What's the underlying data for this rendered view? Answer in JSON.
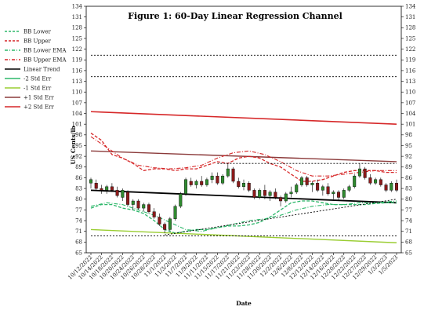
{
  "chart_data": {
    "type": "line",
    "title": "Figure 1:  60-Day Linear Regression Channel",
    "xlabel": "Date",
    "ylabel": "US Cents/lb",
    "ylim": [
      65,
      134
    ],
    "yticks": [
      65,
      68,
      71,
      74,
      77,
      80,
      83,
      86,
      89,
      92,
      95,
      98,
      101,
      104,
      107,
      110,
      113,
      116,
      119,
      122,
      125,
      128,
      131,
      134
    ],
    "categories": [
      "10/12/2022",
      "10/14/2022",
      "10/18/2022",
      "10/20/2022",
      "10/24/2022",
      "10/26/2022",
      "10/28/2022",
      "11/1/2022",
      "11/3/2022",
      "11/7/2022",
      "11/9/2022",
      "11/11/2022",
      "11/15/2022",
      "11/17/2022",
      "11/21/2022",
      "11/23/2022",
      "11/28/2022",
      "11/30/2022",
      "12/2/2022",
      "12/6/2022",
      "12/8/2022",
      "12/12/2022",
      "12/14/2022",
      "12/16/2022",
      "12/20/2022",
      "12/22/2022",
      "12/27/2022",
      "12/29/2022",
      "1/3/2023",
      "1/5/2023"
    ],
    "legend_position": "left",
    "grid": false,
    "legend": [
      {
        "name": "BB Lower",
        "color": "#2eb86b",
        "dash": "dashed"
      },
      {
        "name": "BB Upper",
        "color": "#d62728",
        "dash": "dashed"
      },
      {
        "name": "BB Lower EMA",
        "color": "#2eb86b",
        "dash": "dashdot"
      },
      {
        "name": "BB Upper EMA",
        "color": "#d62728",
        "dash": "dashdot"
      },
      {
        "name": "Linear Trend",
        "color": "#000000",
        "dash": "solid"
      },
      {
        "name": "-2 Std Err",
        "color": "#2eb86b",
        "dash": "solid"
      },
      {
        "name": "-1 Std Err",
        "color": "#9acd32",
        "dash": "solid"
      },
      {
        "name": "+1 Std Err",
        "color": "#8b3a3a",
        "dash": "solid"
      },
      {
        "name": "+2 Std Err",
        "color": "#d62728",
        "dash": "solid"
      }
    ],
    "series": [
      {
        "name": "Linear Trend",
        "type": "straight",
        "color": "#000000",
        "width": 1.8,
        "dash": "",
        "from": [
          0,
          82.5
        ],
        "to": [
          58,
          79.0
        ]
      },
      {
        "name": "+1 Std Err",
        "type": "straight",
        "color": "#8b3a3a",
        "width": 1.4,
        "dash": "",
        "from": [
          0,
          93.5
        ],
        "to": [
          58,
          90.5
        ]
      },
      {
        "name": "+2 Std Err",
        "type": "straight",
        "color": "#d62728",
        "width": 1.6,
        "dash": "",
        "from": [
          0,
          104.5
        ],
        "to": [
          58,
          101.0
        ]
      },
      {
        "name": "-1 Std Err",
        "type": "straight",
        "color": "#9acd32",
        "width": 1.4,
        "dash": "",
        "from": [
          0,
          71.5
        ],
        "to": [
          58,
          67.8
        ]
      },
      {
        "name": "BB Upper",
        "type": "line",
        "color": "#d62728",
        "width": 1.3,
        "dash": "4,2",
        "x": [
          0,
          2,
          4,
          6,
          8,
          10,
          12,
          14,
          16,
          18,
          20,
          22,
          24,
          26,
          28,
          30,
          32,
          34,
          36,
          38,
          40,
          42,
          44,
          46,
          48,
          50,
          52,
          54,
          56,
          58
        ],
        "y": [
          98.5,
          96.5,
          92.5,
          91.5,
          90.0,
          88.0,
          88.5,
          88.5,
          88.0,
          88.5,
          88.5,
          89.5,
          90.5,
          90.0,
          91.5,
          92.0,
          91.5,
          90.0,
          89.0,
          87.0,
          85.0,
          85.0,
          85.5,
          86.5,
          87.5,
          88.0,
          88.0,
          88.0,
          87.5,
          87.5
        ]
      },
      {
        "name": "BB Upper EMA",
        "type": "line",
        "color": "#d62728",
        "width": 1.1,
        "dash": "5,2,1,2",
        "x": [
          0,
          3,
          6,
          9,
          12,
          15,
          18,
          21,
          24,
          27,
          30,
          33,
          36,
          39,
          42,
          45,
          48,
          51,
          54,
          58
        ],
        "y": [
          97.5,
          94.5,
          91.5,
          89.5,
          88.8,
          88.5,
          88.8,
          89.5,
          91.5,
          93.0,
          93.5,
          92.5,
          90.5,
          88.0,
          86.5,
          86.5,
          87.0,
          87.5,
          88.0,
          88.0
        ]
      },
      {
        "name": "BB Lower",
        "type": "line",
        "color": "#2eb86b",
        "width": 1.3,
        "dash": "4,2",
        "x": [
          0,
          2,
          4,
          6,
          8,
          10,
          12,
          14,
          16,
          18,
          20,
          22,
          24,
          26,
          28,
          30,
          32,
          34,
          36,
          38,
          40,
          42,
          44,
          46,
          48,
          50,
          52,
          54,
          56,
          58
        ],
        "y": [
          77.5,
          78.5,
          78.5,
          77.5,
          77.0,
          76.0,
          74.0,
          71.5,
          70.5,
          71.0,
          71.5,
          71.5,
          72.0,
          72.5,
          72.5,
          72.8,
          73.5,
          75.0,
          77.0,
          79.0,
          79.5,
          79.5,
          79.0,
          78.5,
          78.5,
          78.5,
          78.5,
          78.8,
          79.0,
          79.0
        ]
      },
      {
        "name": "BB Lower EMA",
        "type": "line",
        "color": "#2eb86b",
        "width": 1.1,
        "dash": "5,2,1,2",
        "x": [
          0,
          3,
          6,
          9,
          12,
          15,
          18,
          21,
          24,
          27,
          30,
          33,
          36,
          39,
          42,
          45,
          48,
          51,
          54,
          58
        ],
        "y": [
          78.0,
          79.0,
          78.5,
          77.0,
          75.5,
          73.5,
          71.5,
          71.0,
          72.0,
          73.0,
          74.0,
          74.5,
          75.5,
          77.0,
          78.0,
          78.5,
          78.5,
          79.0,
          79.0,
          79.5
        ]
      },
      {
        "name": "channel-resistance",
        "type": "straight",
        "color": "#000000",
        "width": 0.9,
        "dash": "2,2",
        "from": [
          24,
          90.0
        ],
        "to": [
          58,
          90.0
        ]
      },
      {
        "name": "channel-support",
        "type": "straight",
        "color": "#000000",
        "width": 0.9,
        "dash": "2,2",
        "from": [
          14,
          70.0
        ],
        "to": [
          58,
          80.0
        ]
      },
      {
        "name": "upper-reference",
        "type": "straight",
        "color": "#000000",
        "width": 0.9,
        "dash": "2,2",
        "from": [
          0,
          120.3
        ],
        "to": [
          58,
          120.3
        ]
      },
      {
        "name": "lower-reference",
        "type": "straight",
        "color": "#000000",
        "width": 0.9,
        "dash": "2,2",
        "from": [
          0,
          114.3
        ],
        "to": [
          58,
          114.3
        ]
      },
      {
        "name": "bottom-reference",
        "type": "straight",
        "color": "#000000",
        "width": 0.9,
        "dash": "2,2",
        "from": [
          0,
          69.7
        ],
        "to": [
          58,
          69.7
        ]
      }
    ],
    "candles": [
      {
        "x": 0,
        "o": 84.5,
        "h": 86.0,
        "l": 83.0,
        "c": 85.5
      },
      {
        "x": 1,
        "o": 84.5,
        "h": 85.5,
        "l": 82.5,
        "c": 83.0
      },
      {
        "x": 2,
        "o": 83.0,
        "h": 84.0,
        "l": 81.5,
        "c": 82.5
      },
      {
        "x": 3,
        "o": 82.5,
        "h": 84.0,
        "l": 81.5,
        "c": 83.5
      },
      {
        "x": 4,
        "o": 83.5,
        "h": 84.5,
        "l": 82.0,
        "c": 82.5
      },
      {
        "x": 5,
        "o": 82.5,
        "h": 83.5,
        "l": 80.5,
        "c": 81.0
      },
      {
        "x": 6,
        "o": 80.5,
        "h": 83.0,
        "l": 79.5,
        "c": 82.5
      },
      {
        "x": 7,
        "o": 82.0,
        "h": 82.5,
        "l": 78.0,
        "c": 78.5
      },
      {
        "x": 8,
        "o": 78.5,
        "h": 80.0,
        "l": 77.0,
        "c": 79.5
      },
      {
        "x": 9,
        "o": 79.5,
        "h": 80.0,
        "l": 77.0,
        "c": 77.5
      },
      {
        "x": 10,
        "o": 77.5,
        "h": 79.0,
        "l": 76.5,
        "c": 78.5
      },
      {
        "x": 11,
        "o": 78.5,
        "h": 79.0,
        "l": 76.0,
        "c": 76.5
      },
      {
        "x": 12,
        "o": 76.5,
        "h": 77.5,
        "l": 74.5,
        "c": 75.0
      },
      {
        "x": 13,
        "o": 75.0,
        "h": 76.0,
        "l": 72.5,
        "c": 73.0
      },
      {
        "x": 14,
        "o": 73.0,
        "h": 73.5,
        "l": 70.5,
        "c": 71.5
      },
      {
        "x": 15,
        "o": 71.5,
        "h": 75.0,
        "l": 71.0,
        "c": 74.5
      },
      {
        "x": 16,
        "o": 74.5,
        "h": 78.5,
        "l": 74.0,
        "c": 78.0
      },
      {
        "x": 17,
        "o": 78.0,
        "h": 82.0,
        "l": 77.5,
        "c": 81.5
      },
      {
        "x": 18,
        "o": 81.5,
        "h": 86.0,
        "l": 81.0,
        "c": 85.5
      },
      {
        "x": 19,
        "o": 85.0,
        "h": 86.0,
        "l": 83.5,
        "c": 84.0
      },
      {
        "x": 20,
        "o": 84.0,
        "h": 85.5,
        "l": 83.0,
        "c": 85.0
      },
      {
        "x": 21,
        "o": 85.0,
        "h": 86.5,
        "l": 83.5,
        "c": 84.0
      },
      {
        "x": 22,
        "o": 84.0,
        "h": 86.0,
        "l": 83.5,
        "c": 85.5
      },
      {
        "x": 23,
        "o": 85.5,
        "h": 87.5,
        "l": 84.5,
        "c": 86.5
      },
      {
        "x": 24,
        "o": 86.5,
        "h": 87.5,
        "l": 84.0,
        "c": 84.5
      },
      {
        "x": 25,
        "o": 84.5,
        "h": 87.0,
        "l": 84.0,
        "c": 86.5
      },
      {
        "x": 26,
        "o": 86.5,
        "h": 90.0,
        "l": 86.0,
        "c": 88.5
      },
      {
        "x": 27,
        "o": 88.5,
        "h": 89.0,
        "l": 84.5,
        "c": 85.0
      },
      {
        "x": 28,
        "o": 85.0,
        "h": 86.0,
        "l": 83.0,
        "c": 83.5
      },
      {
        "x": 29,
        "o": 83.5,
        "h": 85.5,
        "l": 82.5,
        "c": 84.5
      },
      {
        "x": 30,
        "o": 84.5,
        "h": 85.0,
        "l": 82.0,
        "c": 82.5
      },
      {
        "x": 31,
        "o": 82.5,
        "h": 83.0,
        "l": 80.0,
        "c": 80.5
      },
      {
        "x": 32,
        "o": 80.5,
        "h": 83.0,
        "l": 80.0,
        "c": 82.5
      },
      {
        "x": 33,
        "o": 82.5,
        "h": 84.0,
        "l": 80.0,
        "c": 81.0
      },
      {
        "x": 34,
        "o": 81.0,
        "h": 82.5,
        "l": 79.5,
        "c": 82.0
      },
      {
        "x": 35,
        "o": 82.0,
        "h": 83.0,
        "l": 80.0,
        "c": 80.5
      },
      {
        "x": 36,
        "o": 80.5,
        "h": 81.0,
        "l": 78.0,
        "c": 79.5
      },
      {
        "x": 37,
        "o": 79.5,
        "h": 82.0,
        "l": 79.0,
        "c": 81.5
      },
      {
        "x": 38,
        "o": 81.5,
        "h": 83.5,
        "l": 80.5,
        "c": 82.0
      },
      {
        "x": 39,
        "o": 82.0,
        "h": 84.5,
        "l": 81.5,
        "c": 84.0
      },
      {
        "x": 40,
        "o": 84.0,
        "h": 86.5,
        "l": 83.5,
        "c": 86.0
      },
      {
        "x": 41,
        "o": 86.0,
        "h": 86.5,
        "l": 83.5,
        "c": 84.0
      },
      {
        "x": 42,
        "o": 84.0,
        "h": 85.0,
        "l": 82.0,
        "c": 84.5
      },
      {
        "x": 43,
        "o": 84.5,
        "h": 85.5,
        "l": 82.0,
        "c": 82.5
      },
      {
        "x": 44,
        "o": 82.5,
        "h": 84.0,
        "l": 81.0,
        "c": 83.5
      },
      {
        "x": 45,
        "o": 83.5,
        "h": 84.5,
        "l": 81.0,
        "c": 81.5
      },
      {
        "x": 46,
        "o": 81.5,
        "h": 82.5,
        "l": 80.0,
        "c": 82.0
      },
      {
        "x": 47,
        "o": 82.0,
        "h": 82.5,
        "l": 79.5,
        "c": 80.5
      },
      {
        "x": 48,
        "o": 80.5,
        "h": 83.0,
        "l": 80.0,
        "c": 82.5
      },
      {
        "x": 49,
        "o": 82.5,
        "h": 84.0,
        "l": 82.0,
        "c": 83.5
      },
      {
        "x": 50,
        "o": 83.5,
        "h": 87.0,
        "l": 83.0,
        "c": 86.5
      },
      {
        "x": 51,
        "o": 86.5,
        "h": 90.0,
        "l": 86.0,
        "c": 88.5
      },
      {
        "x": 52,
        "o": 88.5,
        "h": 89.0,
        "l": 85.5,
        "c": 86.0
      },
      {
        "x": 53,
        "o": 86.0,
        "h": 87.0,
        "l": 84.0,
        "c": 84.5
      },
      {
        "x": 54,
        "o": 84.5,
        "h": 86.0,
        "l": 84.0,
        "c": 85.5
      },
      {
        "x": 55,
        "o": 85.5,
        "h": 86.0,
        "l": 83.5,
        "c": 84.0
      },
      {
        "x": 56,
        "o": 84.0,
        "h": 84.5,
        "l": 82.0,
        "c": 82.5
      },
      {
        "x": 57,
        "o": 82.5,
        "h": 85.0,
        "l": 82.0,
        "c": 84.5
      },
      {
        "x": 58,
        "o": 84.5,
        "h": 85.5,
        "l": 82.0,
        "c": 82.5
      }
    ]
  }
}
